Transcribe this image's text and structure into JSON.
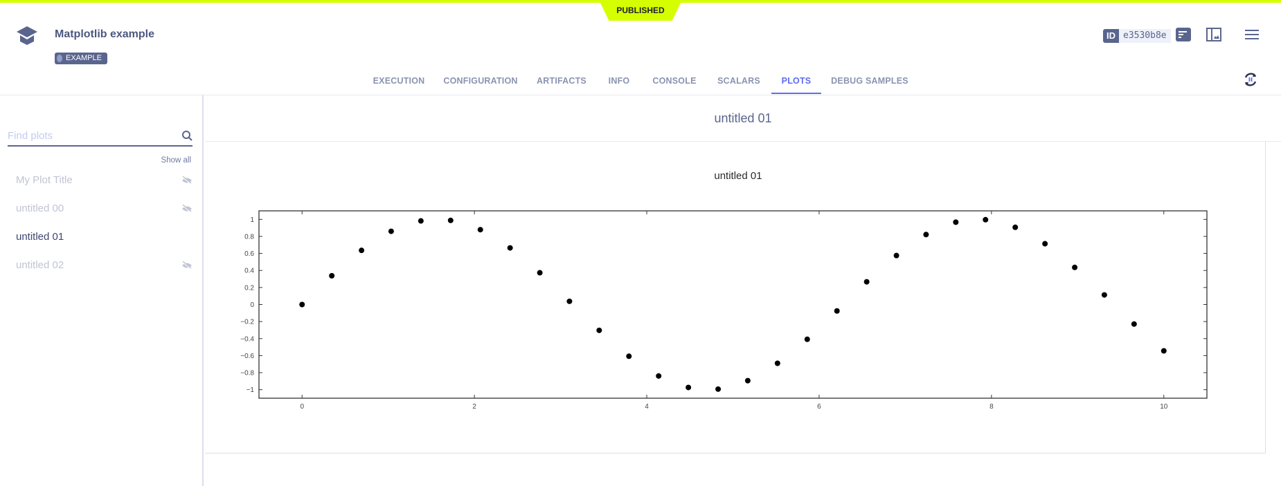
{
  "status": "PUBLISHED",
  "header": {
    "title": "Matplotlib example",
    "tag": "EXAMPLE",
    "id_label": "ID",
    "id_value": "e3530b8e"
  },
  "tabs": [
    {
      "label": "EXECUTION"
    },
    {
      "label": "CONFIGURATION"
    },
    {
      "label": "ARTIFACTS"
    },
    {
      "label": "INFO"
    },
    {
      "label": "CONSOLE"
    },
    {
      "label": "SCALARS"
    },
    {
      "label": "PLOTS",
      "active": true
    },
    {
      "label": "DEBUG SAMPLES"
    }
  ],
  "sidebar": {
    "search_placeholder": "Find plots",
    "show_all": "Show all",
    "items": [
      {
        "label": "My Plot Title",
        "hidden": true
      },
      {
        "label": "untitled 00",
        "hidden": true
      },
      {
        "label": "untitled 01",
        "hidden": false
      },
      {
        "label": "untitled 02",
        "hidden": true
      }
    ]
  },
  "main": {
    "section_title": "untitled 01"
  },
  "colors": {
    "accent": "#5e6bf0",
    "published": "#d5ff00",
    "primary": "#5a658e"
  },
  "chart_data": {
    "type": "scatter",
    "title": "untitled 01",
    "xlabel": "",
    "ylabel": "",
    "xlim": [
      -0.5,
      10.5
    ],
    "ylim": [
      -1.1,
      1.1
    ],
    "xticks": [
      0,
      2,
      4,
      6,
      8,
      10
    ],
    "yticks": [
      1,
      0.8,
      0.6,
      0.4,
      0.2,
      0,
      -0.2,
      -0.4,
      -0.6,
      -0.8,
      -1
    ],
    "grid": false,
    "marker_color": "#000000",
    "x": [
      0,
      0.345,
      0.69,
      1.034,
      1.379,
      1.724,
      2.069,
      2.414,
      2.759,
      3.103,
      3.448,
      3.793,
      4.138,
      4.483,
      4.828,
      5.172,
      5.517,
      5.862,
      6.207,
      6.552,
      6.897,
      7.241,
      7.586,
      7.931,
      8.276,
      8.621,
      8.966,
      9.31,
      9.655,
      10
    ],
    "y": [
      0,
      0.338,
      0.636,
      0.86,
      0.982,
      0.988,
      0.879,
      0.665,
      0.373,
      0.038,
      -0.303,
      -0.607,
      -0.839,
      -0.974,
      -0.993,
      -0.894,
      -0.69,
      -0.408,
      -0.075,
      0.267,
      0.575,
      0.822,
      0.967,
      0.996,
      0.907,
      0.714,
      0.436,
      0.113,
      -0.229,
      -0.544
    ]
  }
}
